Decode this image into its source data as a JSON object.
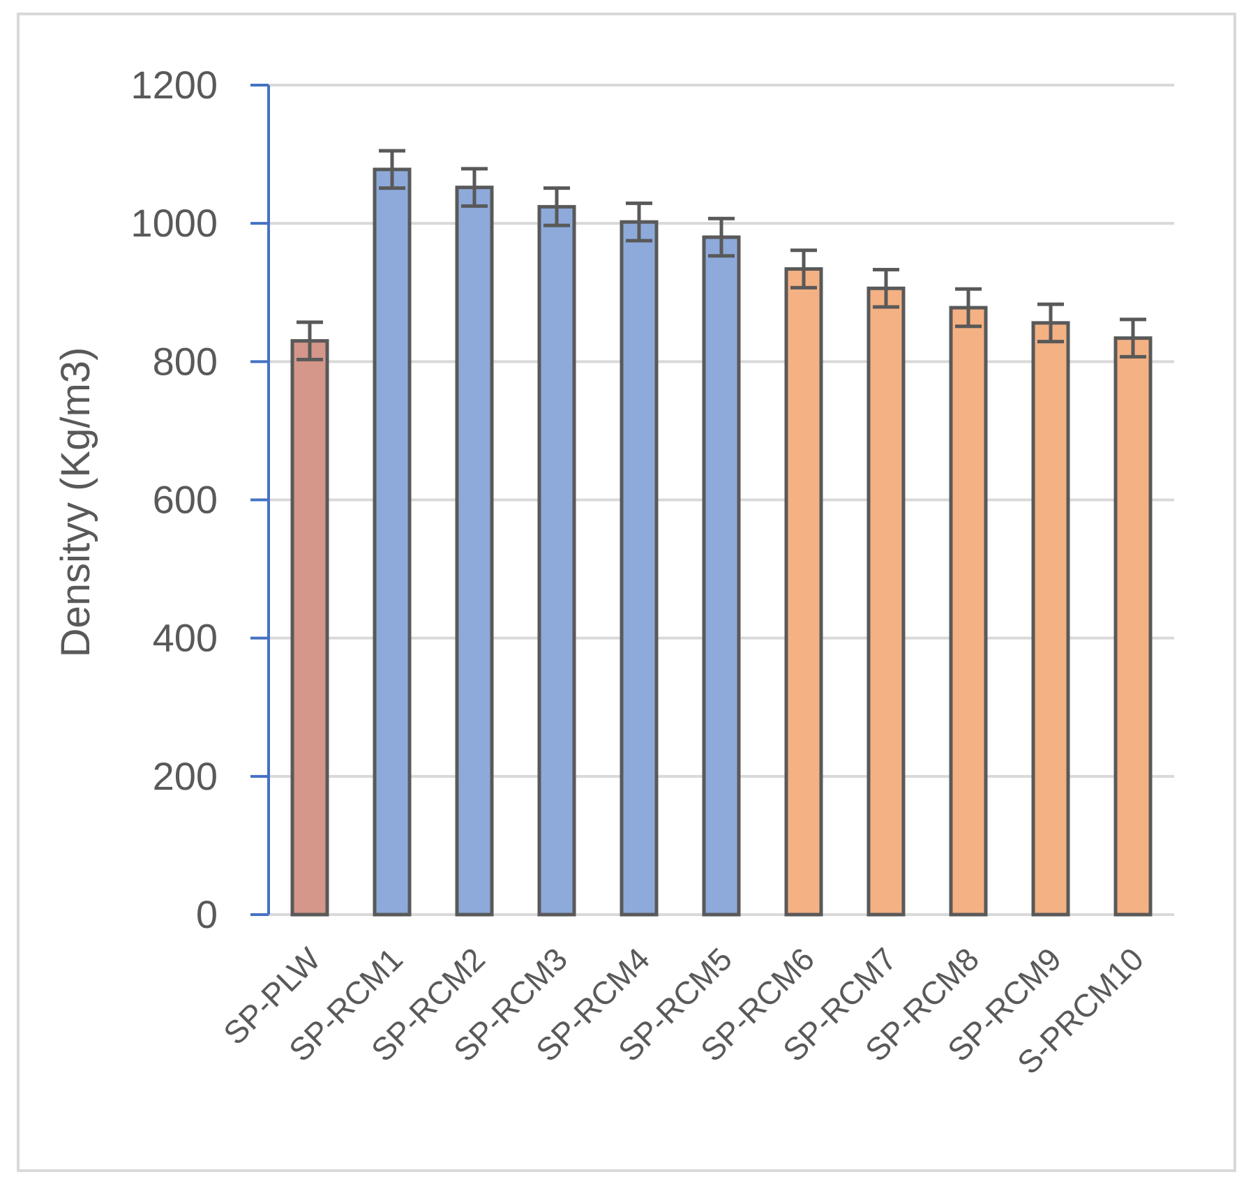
{
  "chart_data": {
    "type": "bar",
    "title": "",
    "xlabel": "",
    "ylabel": "Densityy (Kg/m3)",
    "ylim": [
      0,
      1200
    ],
    "yticks": [
      0,
      200,
      400,
      600,
      800,
      1000,
      1200
    ],
    "grid": true,
    "legend": "none",
    "categories": [
      "SP-PLW",
      "SP-RCM1",
      "SP-RCM2",
      "SP-RCM3",
      "SP-RCM4",
      "SP-RCM5",
      "SP-RCM6",
      "SP-RCM7",
      "SP-RCM8",
      "SP-RCM9",
      "S-PRCM10"
    ],
    "values": [
      830,
      1078,
      1052,
      1024,
      1002,
      980,
      934,
      906,
      878,
      856,
      834
    ],
    "error": [
      27,
      27,
      27,
      27,
      27,
      27,
      27,
      27,
      27,
      27,
      27
    ],
    "bar_colors": [
      "#d4978a",
      "#8eaadb",
      "#8eaadb",
      "#8eaadb",
      "#8eaadb",
      "#8eaadb",
      "#f4b183",
      "#f4b183",
      "#f4b183",
      "#f4b183",
      "#f4b183"
    ],
    "colors": {
      "axis": "#4472c4",
      "gridline": "#d9d9d9",
      "bar_outline": "#595959",
      "error_bar": "#595959",
      "text": "#595959"
    }
  }
}
